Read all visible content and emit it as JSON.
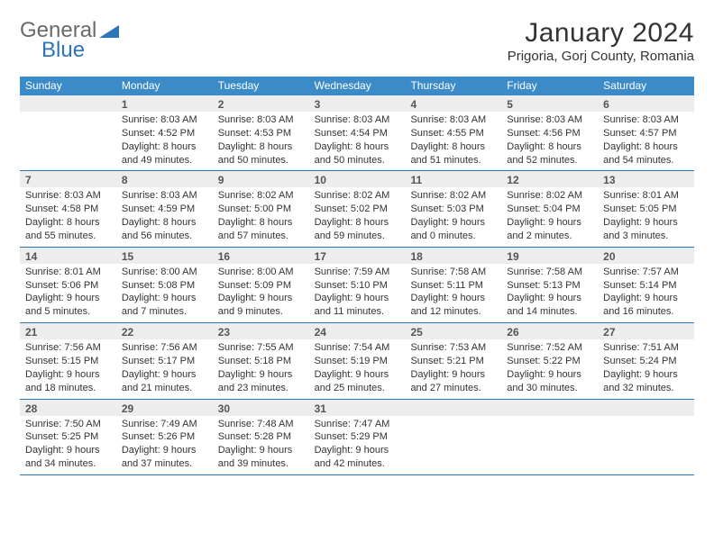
{
  "brand": {
    "part1": "General",
    "part2": "Blue"
  },
  "title": "January 2024",
  "location": "Prigoria, Gorj County, Romania",
  "accent_color": "#3b8bc9",
  "rule_color": "#2a76b9",
  "daynum_bg": "#ededed",
  "dow": [
    "Sunday",
    "Monday",
    "Tuesday",
    "Wednesday",
    "Thursday",
    "Friday",
    "Saturday"
  ],
  "weeks": [
    [
      {
        "n": "",
        "sr": "",
        "ss": "",
        "d1": "",
        "d2": ""
      },
      {
        "n": "1",
        "sr": "Sunrise: 8:03 AM",
        "ss": "Sunset: 4:52 PM",
        "d1": "Daylight: 8 hours",
        "d2": "and 49 minutes."
      },
      {
        "n": "2",
        "sr": "Sunrise: 8:03 AM",
        "ss": "Sunset: 4:53 PM",
        "d1": "Daylight: 8 hours",
        "d2": "and 50 minutes."
      },
      {
        "n": "3",
        "sr": "Sunrise: 8:03 AM",
        "ss": "Sunset: 4:54 PM",
        "d1": "Daylight: 8 hours",
        "d2": "and 50 minutes."
      },
      {
        "n": "4",
        "sr": "Sunrise: 8:03 AM",
        "ss": "Sunset: 4:55 PM",
        "d1": "Daylight: 8 hours",
        "d2": "and 51 minutes."
      },
      {
        "n": "5",
        "sr": "Sunrise: 8:03 AM",
        "ss": "Sunset: 4:56 PM",
        "d1": "Daylight: 8 hours",
        "d2": "and 52 minutes."
      },
      {
        "n": "6",
        "sr": "Sunrise: 8:03 AM",
        "ss": "Sunset: 4:57 PM",
        "d1": "Daylight: 8 hours",
        "d2": "and 54 minutes."
      }
    ],
    [
      {
        "n": "7",
        "sr": "Sunrise: 8:03 AM",
        "ss": "Sunset: 4:58 PM",
        "d1": "Daylight: 8 hours",
        "d2": "and 55 minutes."
      },
      {
        "n": "8",
        "sr": "Sunrise: 8:03 AM",
        "ss": "Sunset: 4:59 PM",
        "d1": "Daylight: 8 hours",
        "d2": "and 56 minutes."
      },
      {
        "n": "9",
        "sr": "Sunrise: 8:02 AM",
        "ss": "Sunset: 5:00 PM",
        "d1": "Daylight: 8 hours",
        "d2": "and 57 minutes."
      },
      {
        "n": "10",
        "sr": "Sunrise: 8:02 AM",
        "ss": "Sunset: 5:02 PM",
        "d1": "Daylight: 8 hours",
        "d2": "and 59 minutes."
      },
      {
        "n": "11",
        "sr": "Sunrise: 8:02 AM",
        "ss": "Sunset: 5:03 PM",
        "d1": "Daylight: 9 hours",
        "d2": "and 0 minutes."
      },
      {
        "n": "12",
        "sr": "Sunrise: 8:02 AM",
        "ss": "Sunset: 5:04 PM",
        "d1": "Daylight: 9 hours",
        "d2": "and 2 minutes."
      },
      {
        "n": "13",
        "sr": "Sunrise: 8:01 AM",
        "ss": "Sunset: 5:05 PM",
        "d1": "Daylight: 9 hours",
        "d2": "and 3 minutes."
      }
    ],
    [
      {
        "n": "14",
        "sr": "Sunrise: 8:01 AM",
        "ss": "Sunset: 5:06 PM",
        "d1": "Daylight: 9 hours",
        "d2": "and 5 minutes."
      },
      {
        "n": "15",
        "sr": "Sunrise: 8:00 AM",
        "ss": "Sunset: 5:08 PM",
        "d1": "Daylight: 9 hours",
        "d2": "and 7 minutes."
      },
      {
        "n": "16",
        "sr": "Sunrise: 8:00 AM",
        "ss": "Sunset: 5:09 PM",
        "d1": "Daylight: 9 hours",
        "d2": "and 9 minutes."
      },
      {
        "n": "17",
        "sr": "Sunrise: 7:59 AM",
        "ss": "Sunset: 5:10 PM",
        "d1": "Daylight: 9 hours",
        "d2": "and 11 minutes."
      },
      {
        "n": "18",
        "sr": "Sunrise: 7:58 AM",
        "ss": "Sunset: 5:11 PM",
        "d1": "Daylight: 9 hours",
        "d2": "and 12 minutes."
      },
      {
        "n": "19",
        "sr": "Sunrise: 7:58 AM",
        "ss": "Sunset: 5:13 PM",
        "d1": "Daylight: 9 hours",
        "d2": "and 14 minutes."
      },
      {
        "n": "20",
        "sr": "Sunrise: 7:57 AM",
        "ss": "Sunset: 5:14 PM",
        "d1": "Daylight: 9 hours",
        "d2": "and 16 minutes."
      }
    ],
    [
      {
        "n": "21",
        "sr": "Sunrise: 7:56 AM",
        "ss": "Sunset: 5:15 PM",
        "d1": "Daylight: 9 hours",
        "d2": "and 18 minutes."
      },
      {
        "n": "22",
        "sr": "Sunrise: 7:56 AM",
        "ss": "Sunset: 5:17 PM",
        "d1": "Daylight: 9 hours",
        "d2": "and 21 minutes."
      },
      {
        "n": "23",
        "sr": "Sunrise: 7:55 AM",
        "ss": "Sunset: 5:18 PM",
        "d1": "Daylight: 9 hours",
        "d2": "and 23 minutes."
      },
      {
        "n": "24",
        "sr": "Sunrise: 7:54 AM",
        "ss": "Sunset: 5:19 PM",
        "d1": "Daylight: 9 hours",
        "d2": "and 25 minutes."
      },
      {
        "n": "25",
        "sr": "Sunrise: 7:53 AM",
        "ss": "Sunset: 5:21 PM",
        "d1": "Daylight: 9 hours",
        "d2": "and 27 minutes."
      },
      {
        "n": "26",
        "sr": "Sunrise: 7:52 AM",
        "ss": "Sunset: 5:22 PM",
        "d1": "Daylight: 9 hours",
        "d2": "and 30 minutes."
      },
      {
        "n": "27",
        "sr": "Sunrise: 7:51 AM",
        "ss": "Sunset: 5:24 PM",
        "d1": "Daylight: 9 hours",
        "d2": "and 32 minutes."
      }
    ],
    [
      {
        "n": "28",
        "sr": "Sunrise: 7:50 AM",
        "ss": "Sunset: 5:25 PM",
        "d1": "Daylight: 9 hours",
        "d2": "and 34 minutes."
      },
      {
        "n": "29",
        "sr": "Sunrise: 7:49 AM",
        "ss": "Sunset: 5:26 PM",
        "d1": "Daylight: 9 hours",
        "d2": "and 37 minutes."
      },
      {
        "n": "30",
        "sr": "Sunrise: 7:48 AM",
        "ss": "Sunset: 5:28 PM",
        "d1": "Daylight: 9 hours",
        "d2": "and 39 minutes."
      },
      {
        "n": "31",
        "sr": "Sunrise: 7:47 AM",
        "ss": "Sunset: 5:29 PM",
        "d1": "Daylight: 9 hours",
        "d2": "and 42 minutes."
      },
      {
        "n": "",
        "sr": "",
        "ss": "",
        "d1": "",
        "d2": ""
      },
      {
        "n": "",
        "sr": "",
        "ss": "",
        "d1": "",
        "d2": ""
      },
      {
        "n": "",
        "sr": "",
        "ss": "",
        "d1": "",
        "d2": ""
      }
    ]
  ]
}
